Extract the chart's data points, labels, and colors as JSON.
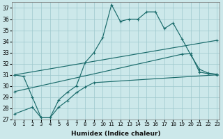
{
  "xlabel": "Humidex (Indice chaleur)",
  "background_color": "#cce8ea",
  "grid_color": "#9dc8cc",
  "line_color": "#1a6b6b",
  "ylim": [
    27,
    37.5
  ],
  "xlim": [
    -0.3,
    23.3
  ],
  "yticks": [
    27,
    28,
    29,
    30,
    31,
    32,
    33,
    34,
    35,
    36,
    37
  ],
  "xticks": [
    0,
    1,
    2,
    3,
    4,
    5,
    6,
    7,
    8,
    9,
    10,
    11,
    12,
    13,
    14,
    15,
    16,
    17,
    18,
    19,
    20,
    21,
    22,
    23
  ],
  "curve_x": [
    0,
    1,
    2,
    3,
    4,
    5,
    6,
    7,
    8,
    9,
    10,
    11,
    12,
    13,
    14,
    15,
    16,
    17,
    18,
    19,
    20,
    21,
    22,
    23
  ],
  "curve_y": [
    31.0,
    30.85,
    29.0,
    27.15,
    27.15,
    28.75,
    29.45,
    30.0,
    32.1,
    33.0,
    34.35,
    37.3,
    35.8,
    36.0,
    36.0,
    36.65,
    36.65,
    35.15,
    35.65,
    34.25,
    32.8,
    31.5,
    31.15,
    31.05
  ],
  "line1_x": [
    0,
    23
  ],
  "line1_y": [
    31.0,
    34.1
  ],
  "line2_x": [
    0,
    19,
    20,
    21,
    22,
    23
  ],
  "line2_y": [
    29.5,
    32.85,
    32.9,
    31.25,
    31.1,
    31.05
  ],
  "line3_x": [
    0,
    2,
    3,
    4,
    5,
    6,
    7,
    8,
    9,
    23
  ],
  "line3_y": [
    27.5,
    28.1,
    27.15,
    27.15,
    28.1,
    28.7,
    29.4,
    29.9,
    30.3,
    31.0
  ]
}
